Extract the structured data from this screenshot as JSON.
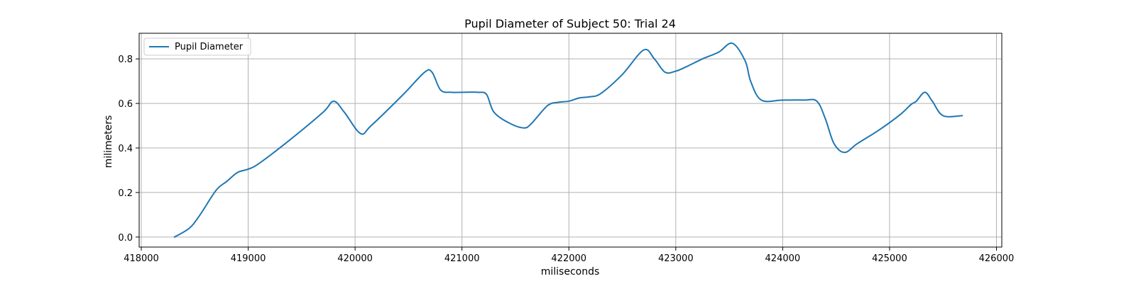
{
  "chart_data": {
    "type": "line",
    "title": "Pupil Diameter of Subject 50: Trial 24",
    "xlabel": "miliseconds",
    "ylabel": "milimeters",
    "xlim": [
      417980,
      426050
    ],
    "ylim": [
      -0.045,
      0.915
    ],
    "xticks": [
      418000,
      419000,
      420000,
      421000,
      422000,
      423000,
      424000,
      425000,
      426000
    ],
    "xtick_labels": [
      "418000",
      "419000",
      "420000",
      "421000",
      "422000",
      "423000",
      "424000",
      "425000",
      "426000"
    ],
    "yticks": [
      0.0,
      0.2,
      0.4,
      0.6,
      0.8
    ],
    "ytick_labels": [
      "0.0",
      "0.2",
      "0.4",
      "0.6",
      "0.8"
    ],
    "grid": true,
    "legend_position": "top-left",
    "series": [
      {
        "name": "Pupil Diameter",
        "color": "#1f77b4",
        "x": [
          418310,
          418450,
          418550,
          418700,
          418800,
          418900,
          419000,
          419100,
          419400,
          419700,
          419800,
          419900,
          420050,
          420150,
          420450,
          420650,
          420720,
          420800,
          420900,
          421000,
          421150,
          421230,
          421300,
          421450,
          421580,
          421650,
          421800,
          421900,
          422000,
          422100,
          422200,
          422300,
          422500,
          422700,
          422800,
          422900,
          423000,
          423100,
          423250,
          423400,
          423530,
          423650,
          423700,
          423800,
          424000,
          424200,
          424320,
          424400,
          424480,
          424580,
          424700,
          424900,
          425100,
          425200,
          425250,
          425330,
          425400,
          425500,
          425680
        ],
        "y": [
          0.0,
          0.04,
          0.1,
          0.21,
          0.25,
          0.29,
          0.305,
          0.33,
          0.44,
          0.56,
          0.61,
          0.56,
          0.465,
          0.5,
          0.64,
          0.74,
          0.74,
          0.66,
          0.65,
          0.65,
          0.65,
          0.64,
          0.56,
          0.51,
          0.49,
          0.51,
          0.59,
          0.605,
          0.61,
          0.625,
          0.63,
          0.645,
          0.73,
          0.84,
          0.8,
          0.74,
          0.745,
          0.765,
          0.8,
          0.83,
          0.87,
          0.79,
          0.7,
          0.615,
          0.615,
          0.615,
          0.61,
          0.53,
          0.42,
          0.38,
          0.42,
          0.48,
          0.55,
          0.595,
          0.61,
          0.65,
          0.61,
          0.545,
          0.545
        ]
      }
    ]
  }
}
